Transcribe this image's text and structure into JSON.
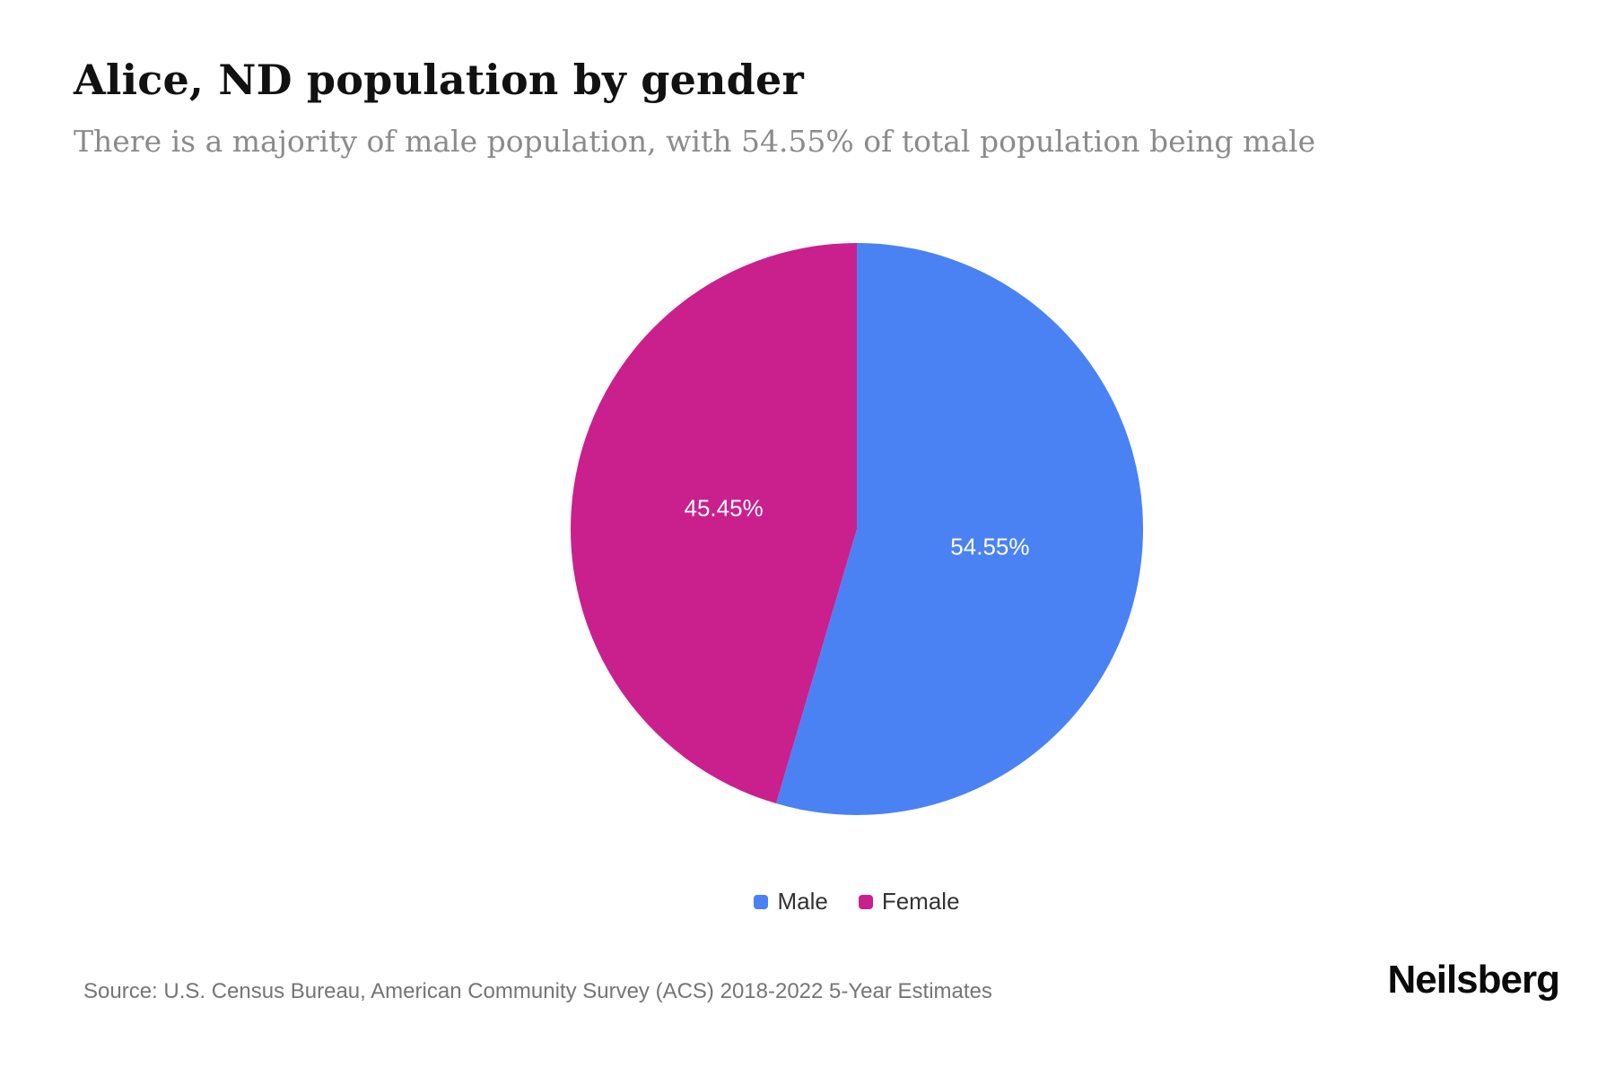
{
  "page": {
    "title": "Alice, ND population by gender",
    "subtitle": "There is a majority of male population, with 54.55% of total population being male",
    "source": "Source: U.S. Census Bureau, American Community Survey (ACS) 2018-2022 5-Year Estimates",
    "brand": "Neilsberg"
  },
  "chart_data": {
    "type": "pie",
    "title": "Alice, ND population by gender",
    "series": [
      {
        "name": "Male",
        "value": 54.55,
        "label": "54.55%",
        "color": "#4a82f4"
      },
      {
        "name": "Female",
        "value": 45.45,
        "label": "45.45%",
        "color": "#c9208e"
      }
    ],
    "start_angle_deg": 0,
    "direction": "clockwise",
    "slice_label_color": "#ffffff",
    "labels_inside": true,
    "legend_position": "bottom"
  }
}
